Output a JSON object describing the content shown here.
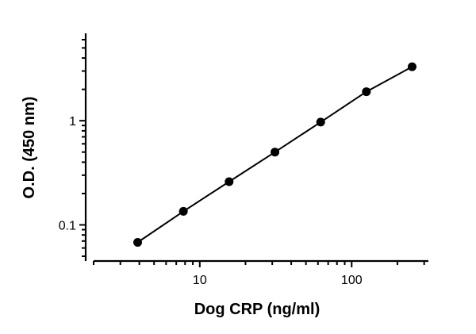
{
  "chart_data": {
    "type": "scatter",
    "title": "",
    "xlabel": "Dog CRP (ng/ml)",
    "ylabel": "O.D. (450 nm)",
    "xscale": "log",
    "yscale": "log",
    "xlim": [
      2,
      320
    ],
    "ylim": [
      0.045,
      6
    ],
    "x_tick_labels": [
      "10",
      "100"
    ],
    "x_tick_values": [
      10,
      100
    ],
    "y_tick_labels": [
      "0.1",
      "1"
    ],
    "y_tick_values": [
      0.1,
      1
    ],
    "grid": false,
    "fit_line": true,
    "series": [
      {
        "x": [
          3.9,
          7.8,
          15.6,
          31.25,
          62.5,
          125,
          250
        ],
        "y": [
          0.068,
          0.135,
          0.26,
          0.5,
          0.97,
          1.9,
          3.3
        ]
      }
    ],
    "colors": {
      "points": "#000000",
      "line": "#000000",
      "axes": "#000000"
    }
  }
}
